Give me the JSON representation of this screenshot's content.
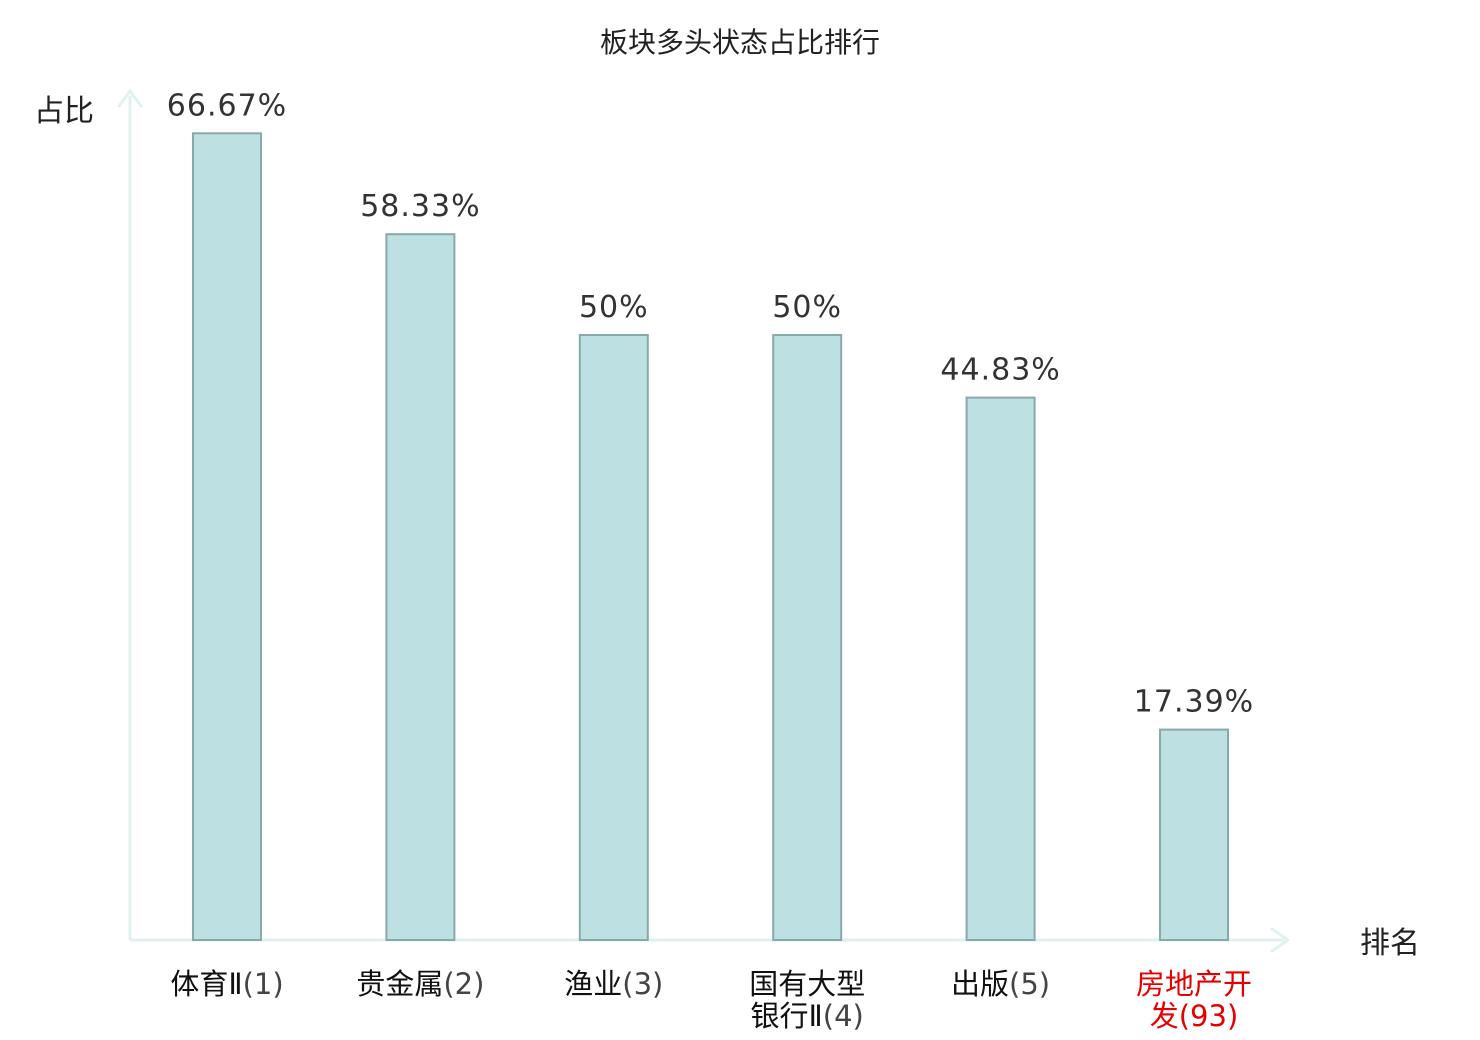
{
  "colors": {
    "bar_fill": "#bde0e2",
    "bar_stroke": "#89a8aa",
    "axis": "#e0f2ef",
    "highlight": "#e60000"
  },
  "chart_data": {
    "type": "bar",
    "title": "板块多头状态占比排行",
    "ylabel": "占比",
    "xlabel": "排名",
    "ylim": [
      0,
      80
    ],
    "grid": false,
    "legend": "none",
    "categories": [
      {
        "lines": [
          "体育Ⅱ(1)"
        ],
        "highlight": false
      },
      {
        "lines": [
          "贵金属(2)"
        ],
        "highlight": false
      },
      {
        "lines": [
          "渔业(3)"
        ],
        "highlight": false
      },
      {
        "lines": [
          "国有大型",
          "银行Ⅱ(4)"
        ],
        "highlight": false
      },
      {
        "lines": [
          "出版(5)"
        ],
        "highlight": false
      },
      {
        "lines": [
          "房地产开",
          "发(93)"
        ],
        "highlight": true
      }
    ],
    "values": [
      66.67,
      58.33,
      50,
      50,
      44.83,
      17.39
    ],
    "value_labels": [
      "66.67%",
      "58.33%",
      "50%",
      "50%",
      "44.83%",
      "17.39%"
    ]
  }
}
